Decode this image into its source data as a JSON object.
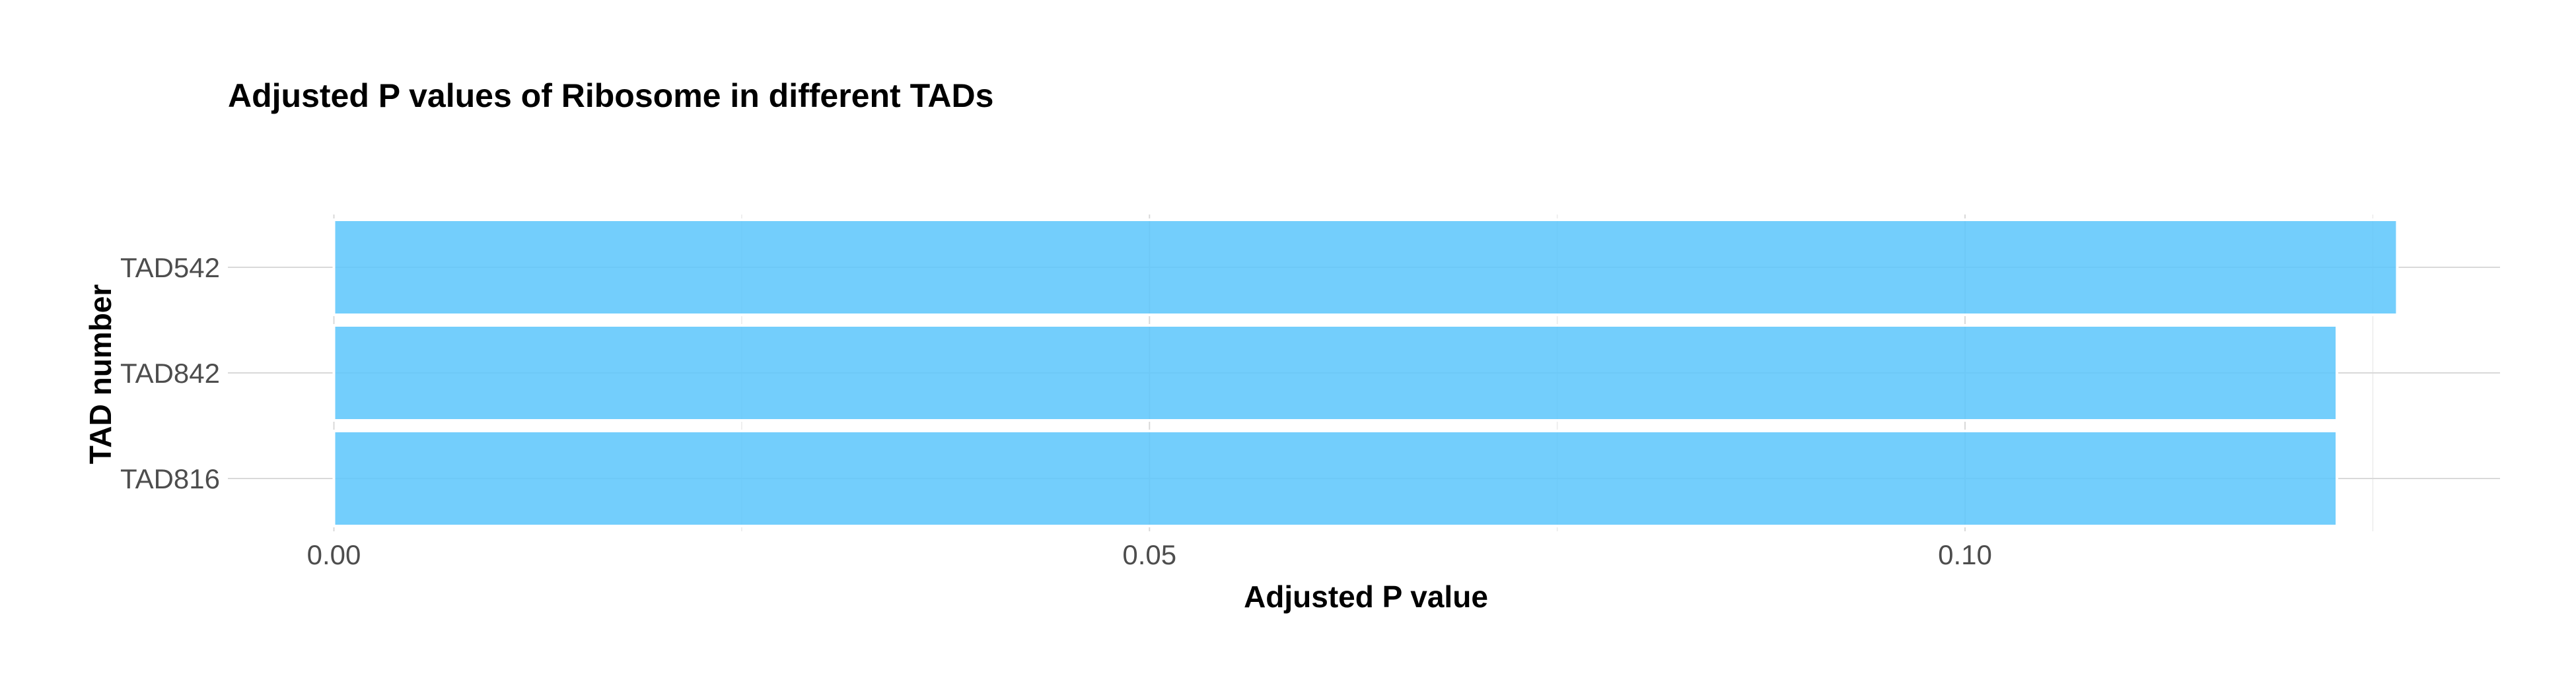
{
  "chart_data": {
    "type": "bar",
    "orientation": "horizontal",
    "title": "Adjusted P values of Ribosome in different TADs",
    "xlabel": "Adjusted P value",
    "ylabel": "TAD number",
    "categories": [
      "TAD542",
      "TAD842",
      "TAD816"
    ],
    "values": [
      0.1265,
      0.1228,
      0.1228
    ],
    "xlim": [
      -0.0065,
      0.1328
    ],
    "xticks": [
      0.0,
      0.05,
      0.1
    ],
    "xtick_labels": [
      "0.00",
      "0.05",
      "0.10"
    ],
    "grid": true,
    "bar_color": "#5bc5fb"
  }
}
